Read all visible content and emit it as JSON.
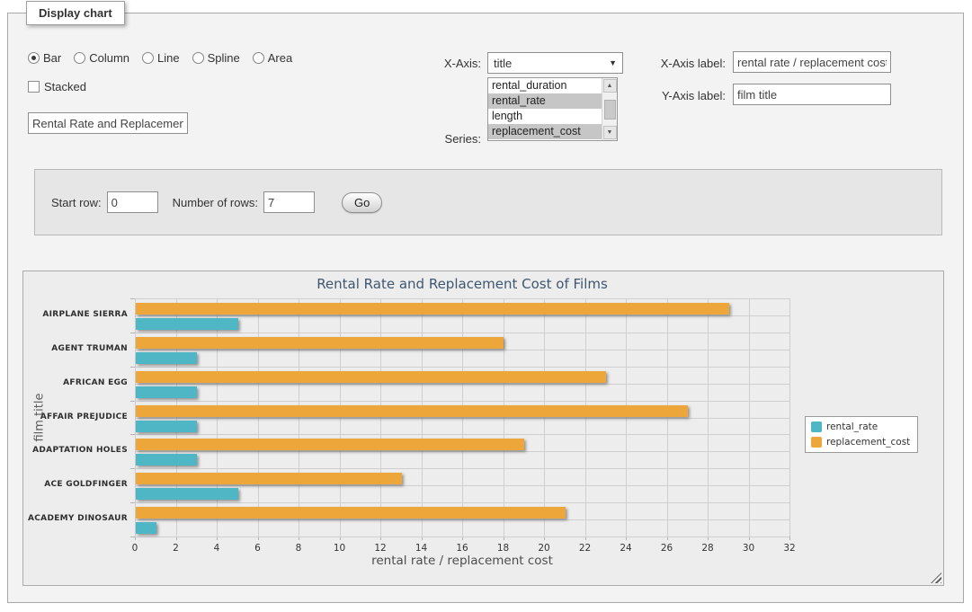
{
  "fieldset": {
    "legend": "Display chart"
  },
  "chart_type_options": [
    {
      "label": "Bar",
      "selected": true
    },
    {
      "label": "Column",
      "selected": false
    },
    {
      "label": "Line",
      "selected": false
    },
    {
      "label": "Spline",
      "selected": false
    },
    {
      "label": "Area",
      "selected": false
    }
  ],
  "stacked": {
    "label": "Stacked",
    "checked": false
  },
  "title_input": {
    "value": "Rental Rate and Replacement Cost of Films"
  },
  "x_axis_select": {
    "label": "X-Axis:",
    "selected": "title"
  },
  "series_select": {
    "label": "Series:",
    "options": [
      {
        "label": "rental_duration",
        "selected": false
      },
      {
        "label": "rental_rate",
        "selected": true
      },
      {
        "label": "length",
        "selected": false
      },
      {
        "label": "replacement_cost",
        "selected": true
      }
    ]
  },
  "x_axis_label_field": {
    "label": "X-Axis label:",
    "value": "rental rate / replacement cost"
  },
  "y_axis_label_field": {
    "label": "Y-Axis label:",
    "value": "film title"
  },
  "row_panel": {
    "start_row_label": "Start row:",
    "start_row_value": "0",
    "num_rows_label": "Number of rows:",
    "num_rows_value": "7",
    "go_label": "Go"
  },
  "icons": {
    "dropdown_arrow": "▼",
    "scroll_up": "▲",
    "scroll_down": "▼"
  },
  "chart_data": {
    "type": "bar",
    "title": "Rental Rate and Replacement Cost of Films",
    "categories": [
      "AIRPLANE SIERRA",
      "AGENT TRUMAN",
      "AFRICAN EGG",
      "AFFAIR PREJUDICE",
      "ADAPTATION HOLES",
      "ACE GOLDFINGER",
      "ACADEMY DINOSAUR"
    ],
    "series": [
      {
        "name": "rental_rate",
        "color": "#4FB6C6",
        "values": [
          4.99,
          2.99,
          2.99,
          2.99,
          2.99,
          4.99,
          0.99
        ]
      },
      {
        "name": "replacement_cost",
        "color": "#EDA63A",
        "values": [
          28.99,
          17.99,
          22.99,
          26.99,
          18.99,
          12.99,
          20.99
        ]
      }
    ],
    "xlabel": "rental rate / replacement cost",
    "ylabel": "film title",
    "xlim": [
      0,
      32
    ],
    "tick_interval": 2,
    "grid": true,
    "legend_position": "right",
    "plot_bg": "#ededed",
    "grid_color": "#cfcfcf"
  }
}
